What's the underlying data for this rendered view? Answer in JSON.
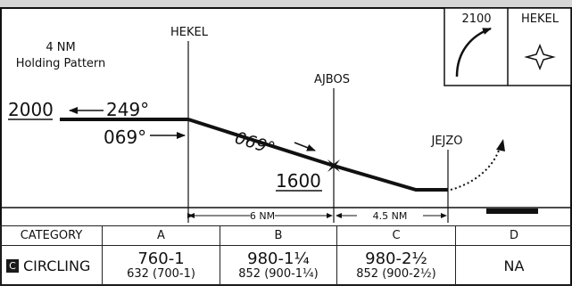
{
  "holding": {
    "line1": "4 NM",
    "line2": "Holding Pattern",
    "altitude": "2000",
    "outbound_course": "249°",
    "inbound_course": "069°"
  },
  "fixes": {
    "hekel": "HEKEL",
    "ajbos": "AJBOS",
    "jejzo": "JEJZO"
  },
  "segment": {
    "course": "069°",
    "altitude": "1600"
  },
  "missed_approach_box": {
    "altitude": "2100",
    "fix": "HEKEL"
  },
  "distances": {
    "hekel_to_ajbos": "6 NM",
    "ajbos_to_jejzo": "4.5 NM"
  },
  "minima": {
    "headers": [
      "CATEGORY",
      "A",
      "B",
      "C",
      "D"
    ],
    "circling_badge": "C",
    "circling_label": "CIRCLING",
    "cat_a_main": "760-1",
    "cat_a_sub": "632 (700-1)",
    "cat_b_main": "980-1¼",
    "cat_b_sub": "852 (900-1¼)",
    "cat_c_main": "980-2½",
    "cat_c_sub": "852 (900-2½)",
    "cat_d_main": "NA"
  }
}
